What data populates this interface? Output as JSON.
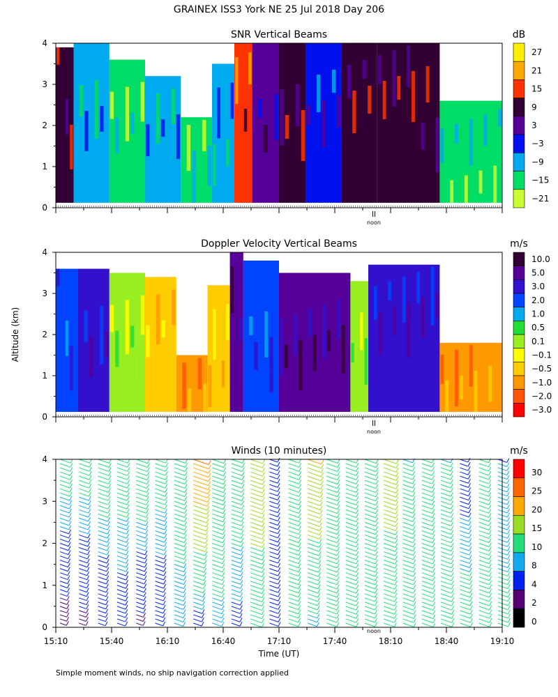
{
  "header": {
    "title": "GRAINEX ISS3 York NE  25 Jul 2018 Day 206"
  },
  "footer": {
    "note": "Simple moment winds, no ship navigation correction applied"
  },
  "chart_data": [
    {
      "type": "heatmap",
      "title": "SNR Vertical Beams",
      "colorbar_unit": "dB",
      "colorbar_labels": [
        "27",
        "21",
        "15",
        "9",
        "3",
        "−3",
        "−9",
        "−15",
        "−21"
      ],
      "colors": [
        "#ffee00",
        "#ffaa00",
        "#ff3300",
        "#330033",
        "#550099",
        "#0011ee",
        "#00aaee",
        "#00dd66",
        "#ccff33"
      ],
      "y_ticks": [
        "0",
        "1",
        "2",
        "3",
        "4"
      ],
      "ylim": [
        0,
        4
      ],
      "marker_label": "noon",
      "columns": [
        {
          "t0": 0.0,
          "t1": 0.04,
          "level": 3,
          "top": 3.9
        },
        {
          "t0": 0.04,
          "t1": 0.12,
          "level": 6,
          "top": 4.0
        },
        {
          "t0": 0.12,
          "t1": 0.2,
          "level": 7,
          "top": 3.6
        },
        {
          "t0": 0.2,
          "t1": 0.28,
          "level": 6,
          "top": 3.2
        },
        {
          "t0": 0.28,
          "t1": 0.35,
          "level": 7,
          "top": 2.2
        },
        {
          "t0": 0.35,
          "t1": 0.4,
          "level": 6,
          "top": 3.5
        },
        {
          "t0": 0.4,
          "t1": 0.44,
          "level": 2,
          "top": 4.0
        },
        {
          "t0": 0.44,
          "t1": 0.5,
          "level": 4,
          "top": 4.0
        },
        {
          "t0": 0.5,
          "t1": 0.56,
          "level": 3,
          "top": 4.0
        },
        {
          "t0": 0.56,
          "t1": 0.64,
          "level": 5,
          "top": 4.0
        },
        {
          "t0": 0.64,
          "t1": 0.72,
          "level": 3,
          "top": 4.0
        },
        {
          "t0": 0.72,
          "t1": 0.86,
          "level": 3,
          "top": 4.0
        },
        {
          "t0": 0.86,
          "t1": 1.0,
          "level": 7,
          "top": 2.6
        }
      ]
    },
    {
      "type": "heatmap",
      "title": "Doppler Velocity Vertical Beams",
      "colorbar_unit": "m/s",
      "colorbar_labels": [
        "10.0",
        "5.0",
        "3.0",
        "2.0",
        "1.0",
        "0.5",
        "0.1",
        "−0.1",
        "−0.5",
        "−1.0",
        "−2.0",
        "−3.0"
      ],
      "colors": [
        "#330033",
        "#550099",
        "#3311cc",
        "#0044ff",
        "#00aaee",
        "#22dd33",
        "#99ee22",
        "#ffff00",
        "#ffcc00",
        "#ff9900",
        "#ff5500",
        "#ff0000"
      ],
      "y_ticks": [
        "0",
        "1",
        "2",
        "3",
        "4"
      ],
      "ylim": [
        0,
        4
      ],
      "marker_label": "noon",
      "columns": [
        {
          "t0": 0.0,
          "t1": 0.05,
          "level": 3,
          "top": 3.6
        },
        {
          "t0": 0.05,
          "t1": 0.12,
          "level": 2,
          "top": 3.6
        },
        {
          "t0": 0.12,
          "t1": 0.2,
          "level": 6,
          "top": 3.5
        },
        {
          "t0": 0.2,
          "t1": 0.27,
          "level": 8,
          "top": 3.4
        },
        {
          "t0": 0.27,
          "t1": 0.34,
          "level": 9,
          "top": 1.5
        },
        {
          "t0": 0.34,
          "t1": 0.39,
          "level": 8,
          "top": 3.2
        },
        {
          "t0": 0.39,
          "t1": 0.42,
          "level": 1,
          "top": 4.0
        },
        {
          "t0": 0.42,
          "t1": 0.5,
          "level": 3,
          "top": 3.8
        },
        {
          "t0": 0.5,
          "t1": 0.66,
          "level": 1,
          "top": 3.5
        },
        {
          "t0": 0.66,
          "t1": 0.7,
          "level": 6,
          "top": 3.3
        },
        {
          "t0": 0.7,
          "t1": 0.86,
          "level": 2,
          "top": 3.7
        },
        {
          "t0": 0.86,
          "t1": 1.0,
          "level": 9,
          "top": 1.8
        }
      ]
    },
    {
      "type": "scatter",
      "title": "Winds (10 minutes)",
      "colorbar_unit": "m/s",
      "colorbar_labels": [
        "30",
        "25",
        "20",
        "15",
        "10",
        "8",
        "4",
        "2",
        "0"
      ],
      "colors": [
        "#ff0000",
        "#ff6600",
        "#ffaa00",
        "#99dd22",
        "#22dd77",
        "#11aaee",
        "#0022ee",
        "#550077",
        "#000000"
      ],
      "xlabel": "Time (UT)",
      "ylabel": "Altitude (km)",
      "x_ticks": [
        "15:10",
        "15:40",
        "16:10",
        "16:40",
        "17:10",
        "17:40",
        "18:10",
        "18:40",
        "19:10"
      ],
      "y_ticks": [
        "0",
        "1",
        "2",
        "3",
        "4"
      ],
      "ylim": [
        0,
        4
      ],
      "marker_label": "noon",
      "profiles": [
        {
          "time": "15:10",
          "lower_speed": 2,
          "upper_speed": 12
        },
        {
          "time": "15:20",
          "lower_speed": 3,
          "upper_speed": 12
        },
        {
          "time": "15:30",
          "lower_speed": 4,
          "upper_speed": 13
        },
        {
          "time": "15:40",
          "lower_speed": 6,
          "upper_speed": 12
        },
        {
          "time": "15:50",
          "lower_speed": 3,
          "upper_speed": 14
        },
        {
          "time": "16:00",
          "lower_speed": 5,
          "upper_speed": 12
        },
        {
          "time": "16:10",
          "lower_speed": 8,
          "upper_speed": 13
        },
        {
          "time": "16:20",
          "lower_speed": 6,
          "upper_speed": 25
        },
        {
          "time": "16:30",
          "lower_speed": 9,
          "upper_speed": 14
        },
        {
          "time": "16:40",
          "lower_speed": 7,
          "upper_speed": 13
        },
        {
          "time": "16:50",
          "lower_speed": 14,
          "upper_speed": 16
        },
        {
          "time": "17:00",
          "lower_speed": 8,
          "upper_speed": 6
        },
        {
          "time": "17:10",
          "lower_speed": 10,
          "upper_speed": 12
        },
        {
          "time": "17:20",
          "lower_speed": 9,
          "upper_speed": 20
        },
        {
          "time": "17:30",
          "lower_speed": 11,
          "upper_speed": 13
        },
        {
          "time": "17:40",
          "lower_speed": 12,
          "upper_speed": 12
        },
        {
          "time": "17:50",
          "lower_speed": 11,
          "upper_speed": 14
        },
        {
          "time": "18:00",
          "lower_speed": 12,
          "upper_speed": 17
        },
        {
          "time": "18:10",
          "lower_speed": 13,
          "upper_speed": 10
        },
        {
          "time": "18:20",
          "lower_speed": 14,
          "upper_speed": 11
        },
        {
          "time": "18:30",
          "lower_speed": 13,
          "upper_speed": 10
        },
        {
          "time": "18:40",
          "lower_speed": 12,
          "upper_speed": 6
        },
        {
          "time": "18:50",
          "lower_speed": 12,
          "upper_speed": 10
        },
        {
          "time": "19:00",
          "lower_speed": 11,
          "upper_speed": 8
        }
      ]
    }
  ]
}
